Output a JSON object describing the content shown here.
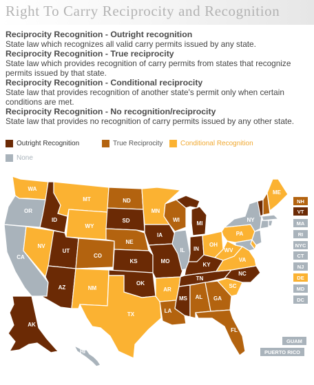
{
  "title": "Right To Carry Reciprocity and Recognition",
  "definitions": [
    {
      "heading": "Reciprocity Recognition - Outright recognition",
      "text": "State law which recognizes all valid carry permits issued by any state."
    },
    {
      "heading": "Reciprocity Recognition - True reciprocity",
      "text": "State law which provides recognition of carry permits from states that recognize permits issued by that state."
    },
    {
      "heading": "Reciprocity Recognition - Conditional reciprocity",
      "text": "State law that provides recognition of another state's permit only when certain conditions are met."
    },
    {
      "heading": "Reciprocity Recognition - No recognition/reciprocity",
      "text": "State law that provides no recognition of carry permits issued by any other state."
    }
  ],
  "legend": [
    {
      "key": "outright",
      "label": "Outright Recognition",
      "color": "#6b2a05",
      "text_color": "#333333"
    },
    {
      "key": "true",
      "label": "True Reciprocity",
      "color": "#b3630f",
      "text_color": "#555555"
    },
    {
      "key": "conditional",
      "label": "Conditional Recognition",
      "color": "#fbb232",
      "text_color": "#f0a830"
    },
    {
      "key": "none",
      "label": "None",
      "color": "#a9b3bb",
      "text_color": "#a9b3bb"
    }
  ],
  "states": {
    "WA": "conditional",
    "OR": "none",
    "CA": "none",
    "ID": "outright",
    "NV": "conditional",
    "MT": "conditional",
    "WY": "conditional",
    "UT": "outright",
    "AZ": "outright",
    "CO": "true",
    "NM": "conditional",
    "ND": "true",
    "SD": "outright",
    "NE": "true",
    "KS": "outright",
    "OK": "outright",
    "TX": "conditional",
    "MN": "conditional",
    "IA": "outright",
    "MO": "outright",
    "AR": "conditional",
    "LA": "true",
    "WI": "true",
    "IL": "none",
    "MS": "outright",
    "MI": "outright",
    "IN": "outright",
    "OH": "conditional",
    "KY": "outright",
    "TN": "outright",
    "AL": "true",
    "GA": "true",
    "FL": "true",
    "SC": "conditional",
    "NC": "outright",
    "VA": "conditional",
    "WV": "conditional",
    "PA": "conditional",
    "NY": "none",
    "ME": "conditional",
    "AK": "outright",
    "HI": "none",
    "NH": "true",
    "VT": "outright",
    "MA": "none",
    "RI": "none",
    "NYC": "none",
    "CT": "none",
    "NJ": "none",
    "DE": "conditional",
    "MD": "none",
    "DC": "none",
    "GUAM": "none",
    "PUERTO RICO": "none"
  },
  "side_boxes": [
    "NH",
    "VT",
    "MA",
    "RI",
    "NYC",
    "CT",
    "NJ",
    "DE",
    "MD",
    "DC"
  ],
  "territories": [
    "GUAM",
    "PUERTO RICO"
  ]
}
